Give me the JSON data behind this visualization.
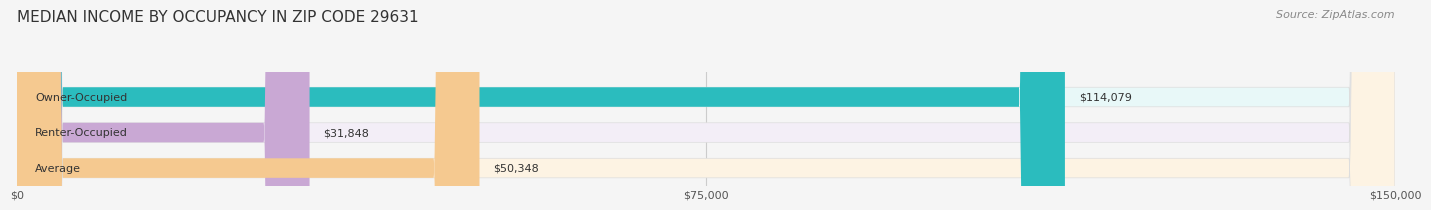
{
  "title": "MEDIAN INCOME BY OCCUPANCY IN ZIP CODE 29631",
  "source": "Source: ZipAtlas.com",
  "categories": [
    "Owner-Occupied",
    "Renter-Occupied",
    "Average"
  ],
  "values": [
    114079,
    31848,
    50348
  ],
  "labels": [
    "$114,079",
    "$31,848",
    "$50,348"
  ],
  "bar_colors": [
    "#2bbcbe",
    "#c9a8d4",
    "#f5c990"
  ],
  "bar_bg_colors": [
    "#e8f8f8",
    "#f3eef7",
    "#fdf3e3"
  ],
  "xlim": [
    0,
    150000
  ],
  "xtick_values": [
    0,
    75000,
    150000
  ],
  "xtick_labels": [
    "$0",
    "$75,000",
    "$150,000"
  ],
  "title_fontsize": 11,
  "source_fontsize": 8,
  "label_fontsize": 8,
  "cat_fontsize": 8
}
